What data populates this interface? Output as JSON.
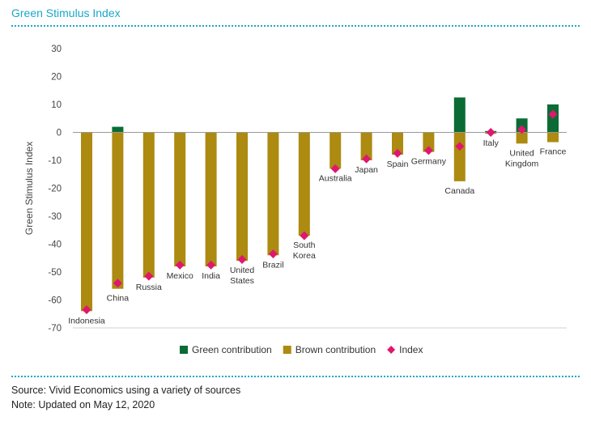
{
  "header": {
    "title": "Green Stimulus Index"
  },
  "footer": {
    "source": "Source: Vivid Economics using a variety of sources",
    "note": "Note: Updated on May 12, 2020"
  },
  "colors": {
    "accent": "#1aa7c9",
    "green": "#0b6b35",
    "brown": "#ad8a10",
    "index": "#e0176e"
  },
  "chart_data": {
    "type": "bar",
    "stacked": true,
    "ylabel": "Green Stimulus Index",
    "xlabel": "",
    "ylim": [
      -70,
      30
    ],
    "yticks": [
      30,
      20,
      10,
      0,
      -10,
      -20,
      -30,
      -40,
      -50,
      -60,
      -70
    ],
    "grid": false,
    "legend_position": "bottom",
    "categories": [
      {
        "name": "Indonesia",
        "lines": [
          "Indonesia"
        ]
      },
      {
        "name": "China",
        "lines": [
          "China"
        ]
      },
      {
        "name": "Russia",
        "lines": [
          "Russia"
        ]
      },
      {
        "name": "Mexico",
        "lines": [
          "Mexico"
        ]
      },
      {
        "name": "India",
        "lines": [
          "India"
        ]
      },
      {
        "name": "United States",
        "lines": [
          "United",
          "States"
        ]
      },
      {
        "name": "Brazil",
        "lines": [
          "Brazil"
        ]
      },
      {
        "name": "South Korea",
        "lines": [
          "South",
          "Korea"
        ]
      },
      {
        "name": "Australia",
        "lines": [
          "Australia"
        ]
      },
      {
        "name": "Japan",
        "lines": [
          "Japan"
        ]
      },
      {
        "name": "Spain",
        "lines": [
          "Spain"
        ]
      },
      {
        "name": "Germany",
        "lines": [
          "Germany"
        ]
      },
      {
        "name": "Canada",
        "lines": [
          "Canada"
        ]
      },
      {
        "name": "Italy",
        "lines": [
          "Italy"
        ]
      },
      {
        "name": "United Kingdom",
        "lines": [
          "United",
          "Kingdom"
        ]
      },
      {
        "name": "France",
        "lines": [
          "France"
        ]
      }
    ],
    "series": [
      {
        "name": "Green contribution",
        "type": "bar",
        "color": "#0b6b35",
        "values": [
          0,
          2,
          0,
          0,
          0,
          0,
          0,
          0,
          0,
          0,
          0,
          0,
          12.5,
          0.5,
          5,
          10
        ]
      },
      {
        "name": "Brown contribution",
        "type": "bar",
        "color": "#ad8a10",
        "values": [
          -64,
          -56,
          -52,
          -48,
          -48,
          -46,
          -44,
          -37,
          -13,
          -10,
          -8,
          -7,
          -17.5,
          -0.5,
          -4,
          -3.5
        ]
      },
      {
        "name": "Index",
        "type": "marker",
        "color": "#e0176e",
        "values": [
          -63.5,
          -54,
          -51.5,
          -47.5,
          -47.5,
          -45.5,
          -43.5,
          -37,
          -13,
          -9.5,
          -7.5,
          -6.5,
          -5,
          0,
          1,
          6.5
        ]
      }
    ]
  }
}
